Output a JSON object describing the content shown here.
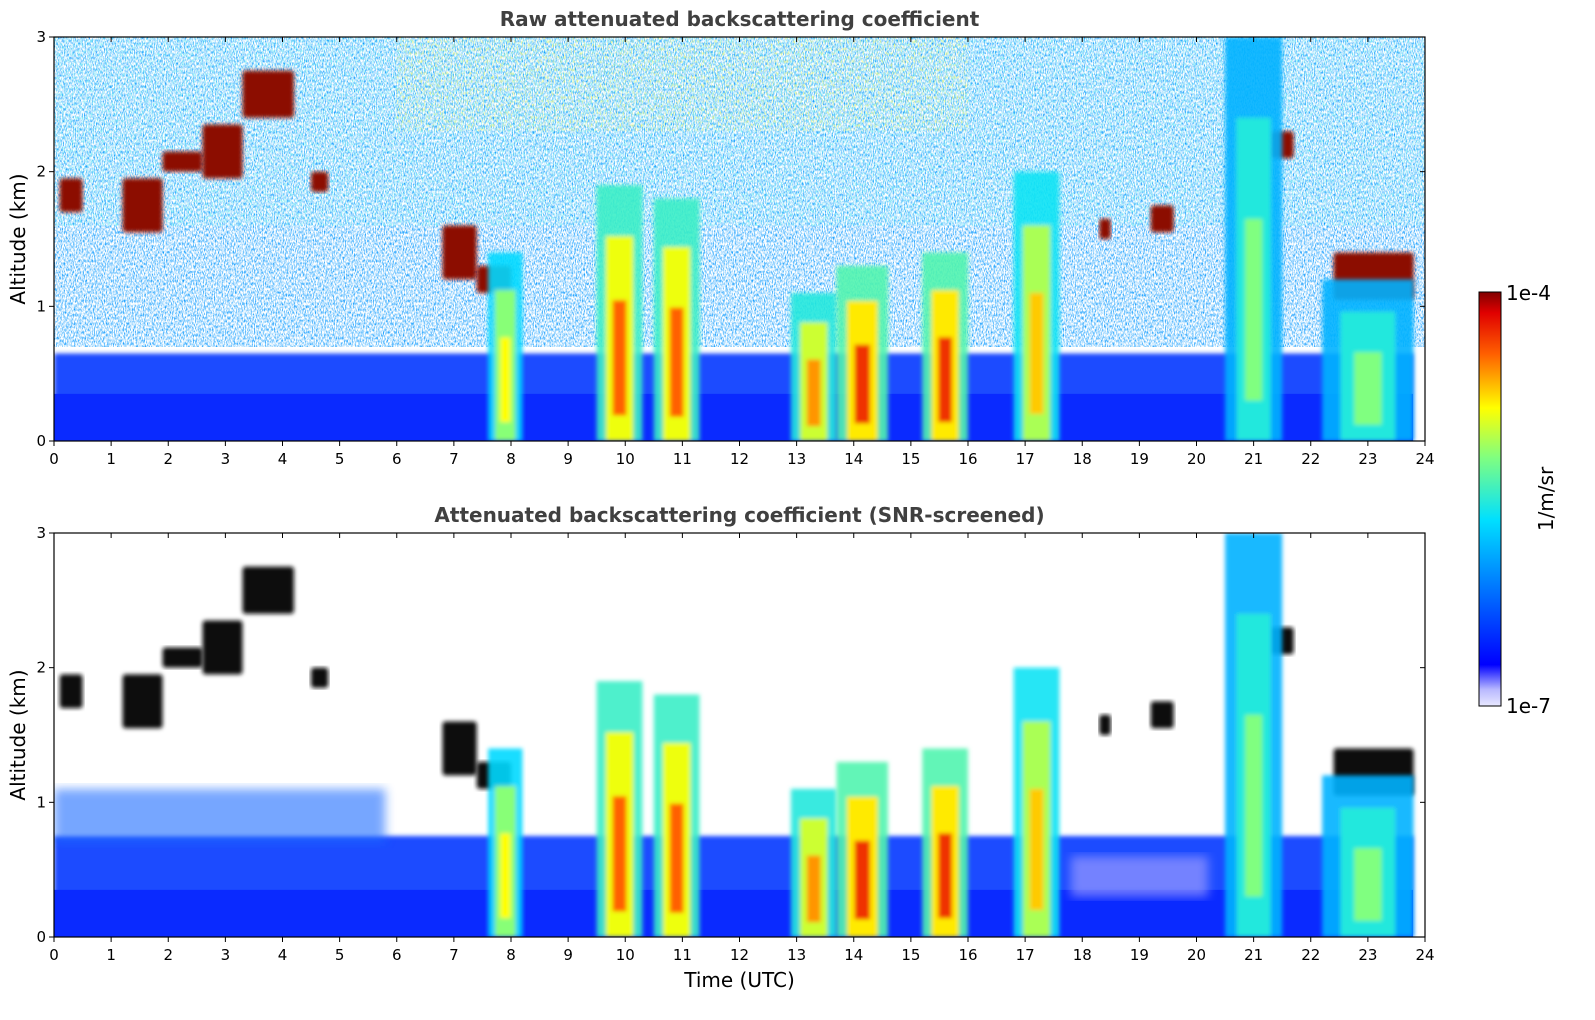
{
  "chart_data": [
    {
      "type": "heatmap",
      "title": "Raw attenuated backscattering coefficient",
      "xlabel": "",
      "ylabel": "Altitude (km)",
      "xlim": [
        0,
        24
      ],
      "ylim": [
        0,
        3
      ],
      "x_ticks": [
        "0",
        "1",
        "2",
        "3",
        "4",
        "5",
        "6",
        "7",
        "8",
        "9",
        "10",
        "11",
        "12",
        "13",
        "14",
        "15",
        "16",
        "17",
        "18",
        "19",
        "20",
        "21",
        "22",
        "23",
        "24"
      ],
      "y_ticks": [
        "0",
        "1",
        "2",
        "3"
      ],
      "color_scale": "log",
      "colormap": "jet",
      "background_noise": "strong noise above ~0.7 km, blue boundary layer below ~0.6 km",
      "features": [
        {
          "kind": "layer",
          "x": [
            0.1,
            0.5
          ],
          "y": [
            1.7,
            1.95
          ],
          "intensity": 1.0
        },
        {
          "kind": "layer",
          "x": [
            1.2,
            1.9
          ],
          "y": [
            1.55,
            1.95
          ],
          "intensity": 1.0
        },
        {
          "kind": "layer",
          "x": [
            1.9,
            2.6
          ],
          "y": [
            2.0,
            2.15
          ],
          "intensity": 1.0
        },
        {
          "kind": "layer",
          "x": [
            2.6,
            3.3
          ],
          "y": [
            1.95,
            2.35
          ],
          "intensity": 1.0
        },
        {
          "kind": "layer",
          "x": [
            3.3,
            4.2
          ],
          "y": [
            2.4,
            2.75
          ],
          "intensity": 1.0
        },
        {
          "kind": "layer",
          "x": [
            4.5,
            4.8
          ],
          "y": [
            1.85,
            2.0
          ],
          "intensity": 1.0
        },
        {
          "kind": "layer",
          "x": [
            6.8,
            7.4
          ],
          "y": [
            1.2,
            1.6
          ],
          "intensity": 1.0
        },
        {
          "kind": "layer",
          "x": [
            7.4,
            8.0
          ],
          "y": [
            1.1,
            1.3
          ],
          "intensity": 1.0
        },
        {
          "kind": "layer",
          "x": [
            18.3,
            18.5
          ],
          "y": [
            1.5,
            1.65
          ],
          "intensity": 1.0
        },
        {
          "kind": "layer",
          "x": [
            19.2,
            19.6
          ],
          "y": [
            1.55,
            1.75
          ],
          "intensity": 1.0
        },
        {
          "kind": "layer",
          "x": [
            21.3,
            21.7
          ],
          "y": [
            2.1,
            2.3
          ],
          "intensity": 1.0
        },
        {
          "kind": "layer",
          "x": [
            22.4,
            23.8
          ],
          "y": [
            1.05,
            1.4
          ],
          "intensity": 1.0
        },
        {
          "kind": "plume",
          "x": [
            7.6,
            8.2
          ],
          "y": [
            0,
            1.4
          ],
          "intensity": 0.7
        },
        {
          "kind": "plume",
          "x": [
            9.5,
            10.3
          ],
          "y": [
            0,
            1.9
          ],
          "intensity": 0.85
        },
        {
          "kind": "plume",
          "x": [
            10.5,
            11.3
          ],
          "y": [
            0,
            1.8
          ],
          "intensity": 0.85
        },
        {
          "kind": "plume",
          "x": [
            12.9,
            13.7
          ],
          "y": [
            0,
            1.1
          ],
          "intensity": 0.8
        },
        {
          "kind": "plume",
          "x": [
            13.7,
            14.6
          ],
          "y": [
            0,
            1.3
          ],
          "intensity": 0.9
        },
        {
          "kind": "plume",
          "x": [
            15.2,
            16.0
          ],
          "y": [
            0,
            1.4
          ],
          "intensity": 0.9
        },
        {
          "kind": "plume",
          "x": [
            16.8,
            17.6
          ],
          "y": [
            0,
            2.0
          ],
          "intensity": 0.75
        },
        {
          "kind": "plume",
          "x": [
            20.5,
            21.5
          ],
          "y": [
            0,
            3.0
          ],
          "intensity": 0.55
        },
        {
          "kind": "plume",
          "x": [
            22.2,
            23.8
          ],
          "y": [
            0,
            1.2
          ],
          "intensity": 0.55
        }
      ]
    },
    {
      "type": "heatmap",
      "title": "Attenuated backscattering coefficient (SNR-screened)",
      "xlabel": "Time (UTC)",
      "ylabel": "Altitude (km)",
      "xlim": [
        0,
        24
      ],
      "ylim": [
        0,
        3
      ],
      "x_ticks": [
        "0",
        "1",
        "2",
        "3",
        "4",
        "5",
        "6",
        "7",
        "8",
        "9",
        "10",
        "11",
        "12",
        "13",
        "14",
        "15",
        "16",
        "17",
        "18",
        "19",
        "20",
        "21",
        "22",
        "23",
        "24"
      ],
      "y_ticks": [
        "0",
        "1",
        "2",
        "3"
      ],
      "color_scale": "log",
      "colormap": "jet",
      "background_noise": "noise removed (white) above ~1 km; blue boundary layer below ~0.8 km",
      "features": [
        {
          "kind": "layer",
          "x": [
            0.1,
            0.5
          ],
          "y": [
            1.7,
            1.95
          ],
          "intensity": 1.0
        },
        {
          "kind": "layer",
          "x": [
            1.2,
            1.9
          ],
          "y": [
            1.55,
            1.95
          ],
          "intensity": 1.0
        },
        {
          "kind": "layer",
          "x": [
            1.9,
            2.6
          ],
          "y": [
            2.0,
            2.15
          ],
          "intensity": 1.0
        },
        {
          "kind": "layer",
          "x": [
            2.6,
            3.3
          ],
          "y": [
            1.95,
            2.35
          ],
          "intensity": 1.0
        },
        {
          "kind": "layer",
          "x": [
            3.3,
            4.2
          ],
          "y": [
            2.4,
            2.75
          ],
          "intensity": 1.0
        },
        {
          "kind": "layer",
          "x": [
            4.5,
            4.8
          ],
          "y": [
            1.85,
            2.0
          ],
          "intensity": 1.0
        },
        {
          "kind": "layer",
          "x": [
            6.8,
            7.4
          ],
          "y": [
            1.2,
            1.6
          ],
          "intensity": 1.0
        },
        {
          "kind": "layer",
          "x": [
            7.4,
            8.0
          ],
          "y": [
            1.1,
            1.3
          ],
          "intensity": 1.0
        },
        {
          "kind": "layer",
          "x": [
            18.3,
            18.5
          ],
          "y": [
            1.5,
            1.65
          ],
          "intensity": 1.0
        },
        {
          "kind": "layer",
          "x": [
            19.2,
            19.6
          ],
          "y": [
            1.55,
            1.75
          ],
          "intensity": 1.0
        },
        {
          "kind": "layer",
          "x": [
            21.3,
            21.7
          ],
          "y": [
            2.1,
            2.3
          ],
          "intensity": 1.0
        },
        {
          "kind": "layer",
          "x": [
            22.4,
            23.8
          ],
          "y": [
            1.05,
            1.4
          ],
          "intensity": 1.0
        },
        {
          "kind": "plume",
          "x": [
            7.6,
            8.2
          ],
          "y": [
            0,
            1.4
          ],
          "intensity": 0.7
        },
        {
          "kind": "plume",
          "x": [
            9.5,
            10.3
          ],
          "y": [
            0,
            1.9
          ],
          "intensity": 0.85
        },
        {
          "kind": "plume",
          "x": [
            10.5,
            11.3
          ],
          "y": [
            0,
            1.8
          ],
          "intensity": 0.85
        },
        {
          "kind": "plume",
          "x": [
            12.9,
            13.7
          ],
          "y": [
            0,
            1.1
          ],
          "intensity": 0.8
        },
        {
          "kind": "plume",
          "x": [
            13.7,
            14.6
          ],
          "y": [
            0,
            1.3
          ],
          "intensity": 0.9
        },
        {
          "kind": "plume",
          "x": [
            15.2,
            16.0
          ],
          "y": [
            0,
            1.4
          ],
          "intensity": 0.9
        },
        {
          "kind": "plume",
          "x": [
            16.8,
            17.6
          ],
          "y": [
            0,
            2.0
          ],
          "intensity": 0.75
        },
        {
          "kind": "plume",
          "x": [
            20.5,
            21.5
          ],
          "y": [
            0,
            3.0
          ],
          "intensity": 0.55
        },
        {
          "kind": "plume",
          "x": [
            22.2,
            23.8
          ],
          "y": [
            0,
            1.2
          ],
          "intensity": 0.55
        }
      ]
    }
  ],
  "colorbar": {
    "label": "1/m/sr",
    "max_label": "1e-4",
    "min_label": "1e-7",
    "colormap": "jet"
  }
}
